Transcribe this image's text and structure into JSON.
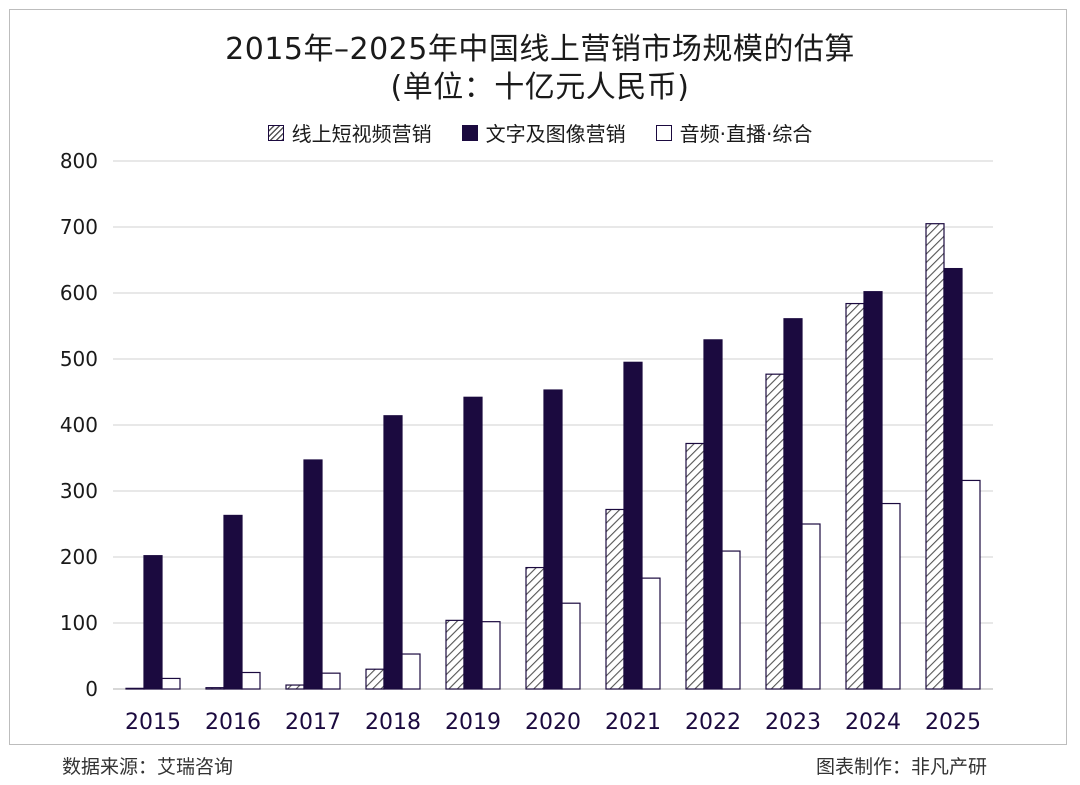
{
  "title_line1": "2015年–2025年中国线上营销市场规模的估算",
  "title_line2": "(单位：十亿元人民币)",
  "footer": {
    "source": "数据来源：艾瑞咨询",
    "made_by": "图表制作：非凡产研"
  },
  "colors": {
    "dark_series": "#1b0a3f",
    "hatch_stroke": "#555555",
    "grid": "#d9d9d9",
    "axis_year_text": "#1b0a3f"
  },
  "chart_data": {
    "type": "bar",
    "title": "2015年–2025年中国线上营销市场规模的估算",
    "subtitle": "(单位：十亿元人民币)",
    "categories": [
      "2015",
      "2016",
      "2017",
      "2018",
      "2019",
      "2020",
      "2021",
      "2022",
      "2023",
      "2024",
      "2025"
    ],
    "series": [
      {
        "name": "线上短视频营销",
        "style": "hatched",
        "values": [
          1,
          2,
          6,
          30,
          104,
          184,
          272,
          372,
          477,
          584,
          705
        ]
      },
      {
        "name": "文字及图像营销",
        "style": "solid-dark",
        "values": [
          202,
          263,
          347,
          414,
          442,
          453,
          495,
          529,
          561,
          602,
          637
        ]
      },
      {
        "name": "音频·直播·综合",
        "style": "white-outline",
        "values": [
          16,
          25,
          24,
          53,
          102,
          130,
          168,
          209,
          250,
          281,
          316
        ]
      }
    ],
    "ylim": [
      0,
      800
    ],
    "yticks": [
      "0",
      "100",
      "200",
      "300",
      "400",
      "500",
      "600",
      "700",
      "800"
    ],
    "grid": true,
    "legend_position": "top-center"
  }
}
